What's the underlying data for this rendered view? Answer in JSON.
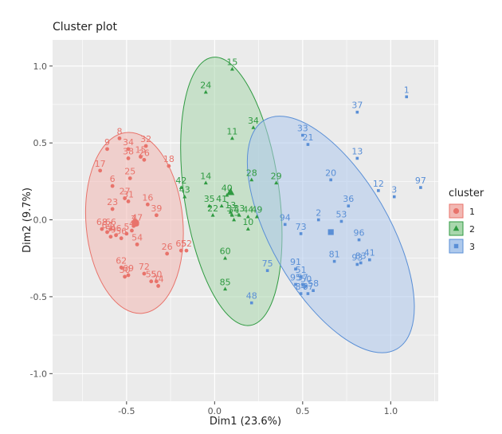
{
  "chart_data": {
    "type": "scatter",
    "title": "Cluster plot",
    "xlabel": "Dim1 (23.6%)",
    "ylabel": "Dim2 (9.7%)",
    "xlim": [
      -0.92,
      1.27
    ],
    "ylim": [
      -1.18,
      1.17
    ],
    "x_ticks": [
      -0.5,
      0.0,
      0.5,
      1.0
    ],
    "y_ticks": [
      -1.0,
      -0.5,
      0.0,
      0.5,
      1.0
    ],
    "x_tick_labels": [
      "-0.5",
      "0.0",
      "0.5",
      "1.0"
    ],
    "y_tick_labels": [
      "-1.0",
      "-0.5",
      "0.0",
      "0.5",
      "1.0"
    ],
    "grid": true,
    "legend": {
      "title": "cluster",
      "placement": "right",
      "entries": [
        {
          "label": "1",
          "shape": "circle"
        },
        {
          "label": "2",
          "shape": "triangle"
        },
        {
          "label": "3",
          "shape": "square"
        }
      ]
    },
    "series": [
      {
        "name": "1",
        "color": "#e8736b",
        "fill": "#f2b8b3",
        "shape": "circle",
        "ellipse": {
          "cx": -0.455,
          "cy": -0.02,
          "rx": 0.275,
          "ry": 0.59,
          "angle_deg": 5
        },
        "center": [
          -0.45,
          -0.02
        ],
        "points": [
          {
            "label": "8",
            "x": -0.54,
            "y": 0.53
          },
          {
            "label": "32",
            "x": -0.39,
            "y": 0.48
          },
          {
            "label": "9",
            "x": -0.61,
            "y": 0.46
          },
          {
            "label": "34",
            "x": -0.49,
            "y": 0.46
          },
          {
            "label": "15",
            "x": -0.42,
            "y": 0.41
          },
          {
            "label": "38",
            "x": -0.49,
            "y": 0.4
          },
          {
            "label": "26",
            "x": -0.4,
            "y": 0.39
          },
          {
            "label": "17",
            "x": -0.65,
            "y": 0.32
          },
          {
            "label": "18",
            "x": -0.26,
            "y": 0.35
          },
          {
            "label": "25",
            "x": -0.48,
            "y": 0.27
          },
          {
            "label": "6",
            "x": -0.58,
            "y": 0.22
          },
          {
            "label": "27",
            "x": -0.51,
            "y": 0.14
          },
          {
            "label": "31",
            "x": -0.49,
            "y": 0.12
          },
          {
            "label": "16",
            "x": -0.38,
            "y": 0.1
          },
          {
            "label": "23",
            "x": -0.58,
            "y": 0.07
          },
          {
            "label": "39",
            "x": -0.33,
            "y": 0.03
          },
          {
            "label": "47",
            "x": -0.44,
            "y": -0.03
          },
          {
            "label": "7",
            "x": -0.46,
            "y": -0.04
          },
          {
            "label": "68",
            "x": -0.64,
            "y": -0.06
          },
          {
            "label": "66",
            "x": -0.59,
            "y": -0.06
          },
          {
            "label": "64",
            "x": -0.61,
            "y": -0.08
          },
          {
            "label": "4",
            "x": -0.47,
            "y": -0.07
          },
          {
            "label": "5",
            "x": -0.5,
            "y": -0.09
          },
          {
            "label": "46",
            "x": -0.56,
            "y": -0.1
          },
          {
            "label": "59",
            "x": -0.59,
            "y": -0.11
          },
          {
            "label": "56",
            "x": -0.53,
            "y": -0.12
          },
          {
            "label": "54",
            "x": -0.44,
            "y": -0.16
          },
          {
            "label": "65",
            "x": -0.19,
            "y": -0.2
          },
          {
            "label": "52",
            "x": -0.16,
            "y": -0.2
          },
          {
            "label": "26b",
            "x": -0.27,
            "y": -0.22
          },
          {
            "label": "62",
            "x": -0.53,
            "y": -0.31
          },
          {
            "label": "72",
            "x": -0.4,
            "y": -0.35
          },
          {
            "label": "69",
            "x": -0.49,
            "y": -0.36
          },
          {
            "label": "30",
            "x": -0.51,
            "y": -0.37
          },
          {
            "label": "55",
            "x": -0.36,
            "y": -0.4
          },
          {
            "label": "50",
            "x": -0.33,
            "y": -0.4
          },
          {
            "label": "74",
            "x": -0.32,
            "y": -0.43
          }
        ]
      },
      {
        "name": "2",
        "color": "#2f9a41",
        "fill": "#a9d7ad",
        "shape": "triangle",
        "ellipse": {
          "cx": 0.095,
          "cy": 0.185,
          "rx": 0.27,
          "ry": 0.88,
          "angle_deg": 8
        },
        "center": [
          0.09,
          0.18
        ],
        "points": [
          {
            "label": "15",
            "x": 0.1,
            "y": 0.98
          },
          {
            "label": "24",
            "x": -0.05,
            "y": 0.83
          },
          {
            "label": "34",
            "x": 0.22,
            "y": 0.6
          },
          {
            "label": "11",
            "x": 0.1,
            "y": 0.53
          },
          {
            "label": "28",
            "x": 0.21,
            "y": 0.26
          },
          {
            "label": "29",
            "x": 0.35,
            "y": 0.24
          },
          {
            "label": "14",
            "x": -0.05,
            "y": 0.24
          },
          {
            "label": "42",
            "x": -0.19,
            "y": 0.21
          },
          {
            "label": "43",
            "x": -0.17,
            "y": 0.15
          },
          {
            "label": "40",
            "x": 0.07,
            "y": 0.16
          },
          {
            "label": "35",
            "x": -0.03,
            "y": 0.09
          },
          {
            "label": "41",
            "x": 0.04,
            "y": 0.09
          },
          {
            "label": "13",
            "x": 0.09,
            "y": 0.05
          },
          {
            "label": "22",
            "x": -0.01,
            "y": 0.03
          },
          {
            "label": "37",
            "x": 0.1,
            "y": 0.03
          },
          {
            "label": "33",
            "x": 0.14,
            "y": 0.03
          },
          {
            "label": "73",
            "x": 0.11,
            "y": 0.0
          },
          {
            "label": "44",
            "x": 0.19,
            "y": 0.02
          },
          {
            "label": "49",
            "x": 0.24,
            "y": 0.02
          },
          {
            "label": "10",
            "x": 0.19,
            "y": -0.06
          },
          {
            "label": "60",
            "x": 0.06,
            "y": -0.25
          },
          {
            "label": "85",
            "x": 0.06,
            "y": -0.45
          }
        ]
      },
      {
        "name": "3",
        "color": "#5a8fd6",
        "fill": "#aec9ec",
        "shape": "square",
        "ellipse": {
          "cx": 0.66,
          "cy": -0.095,
          "rx": 0.335,
          "ry": 0.86,
          "angle_deg": 30
        },
        "center": [
          0.66,
          -0.08
        ],
        "points": [
          {
            "label": "1",
            "x": 1.09,
            "y": 0.8
          },
          {
            "label": "37",
            "x": 0.81,
            "y": 0.7
          },
          {
            "label": "33",
            "x": 0.5,
            "y": 0.55
          },
          {
            "label": "21",
            "x": 0.53,
            "y": 0.49
          },
          {
            "label": "13",
            "x": 0.81,
            "y": 0.4
          },
          {
            "label": "20",
            "x": 0.66,
            "y": 0.26
          },
          {
            "label": "12",
            "x": 0.93,
            "y": 0.19
          },
          {
            "label": "97",
            "x": 1.17,
            "y": 0.21
          },
          {
            "label": "3",
            "x": 1.02,
            "y": 0.15
          },
          {
            "label": "36",
            "x": 0.76,
            "y": 0.09
          },
          {
            "label": "2",
            "x": 0.59,
            "y": 0.0
          },
          {
            "label": "53",
            "x": 0.72,
            "y": -0.01
          },
          {
            "label": "94",
            "x": 0.4,
            "y": -0.03
          },
          {
            "label": "73",
            "x": 0.49,
            "y": -0.09
          },
          {
            "label": "96",
            "x": 0.82,
            "y": -0.13
          },
          {
            "label": "81",
            "x": 0.68,
            "y": -0.27
          },
          {
            "label": "93",
            "x": 0.81,
            "y": -0.29
          },
          {
            "label": "83",
            "x": 0.83,
            "y": -0.28
          },
          {
            "label": "41",
            "x": 0.88,
            "y": -0.26
          },
          {
            "label": "75",
            "x": 0.3,
            "y": -0.33
          },
          {
            "label": "91",
            "x": 0.46,
            "y": -0.32
          },
          {
            "label": "51",
            "x": 0.49,
            "y": -0.37
          },
          {
            "label": "95",
            "x": 0.46,
            "y": -0.42
          },
          {
            "label": "57",
            "x": 0.5,
            "y": -0.42
          },
          {
            "label": "50",
            "x": 0.52,
            "y": -0.43
          },
          {
            "label": "58",
            "x": 0.56,
            "y": -0.46
          },
          {
            "label": "84",
            "x": 0.49,
            "y": -0.48
          },
          {
            "label": "67",
            "x": 0.53,
            "y": -0.48
          },
          {
            "label": "48",
            "x": 0.21,
            "y": -0.54
          }
        ]
      }
    ]
  }
}
